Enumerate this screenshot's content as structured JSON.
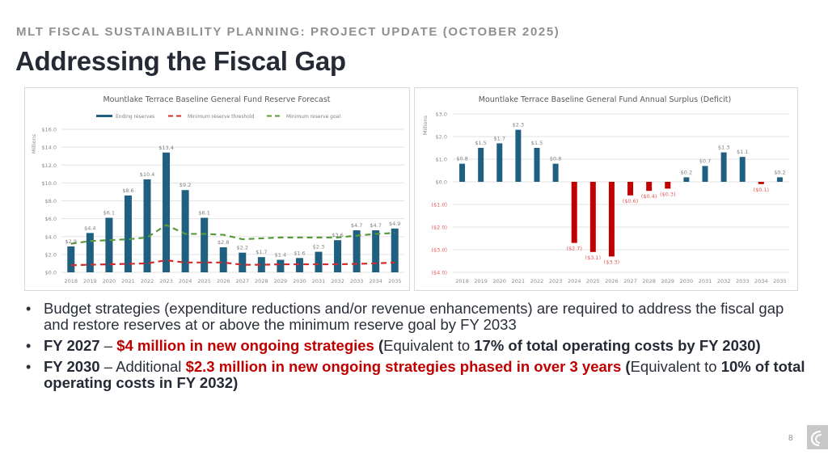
{
  "header": {
    "kicker": "MLT FISCAL SUSTAINABILITY PLANNING: PROJECT UPDATE (OCTOBER 2025)",
    "title": "Addressing the Fiscal Gap"
  },
  "colors": {
    "bar_positive": "#1f5f80",
    "bar_negative": "#c00000",
    "threshold_line": "#d12b2b",
    "goal_line": "#5a9a3a",
    "accent_red": "#c00000"
  },
  "chart_data": [
    {
      "type": "bar",
      "title": "Mountlake Terrace Baseline General Fund Reserve Forecast",
      "ylabel": "Millions",
      "xlabel": "",
      "ylim": [
        0,
        16
      ],
      "yticks": [
        "$0.0",
        "$2.0",
        "$4.0",
        "$6.0",
        "$8.0",
        "$10.0",
        "$12.0",
        "$14.0",
        "$16.0"
      ],
      "ytick_values": [
        0,
        2,
        4,
        6,
        8,
        10,
        12,
        14,
        16
      ],
      "grid": true,
      "legend_position": "top",
      "categories": [
        "2018",
        "2019",
        "2020",
        "2021",
        "2022",
        "2023",
        "2024",
        "2025",
        "2026",
        "2027",
        "2028",
        "2029",
        "2030",
        "2031",
        "2032",
        "2033",
        "2034",
        "2035"
      ],
      "series": [
        {
          "name": "Ending reserves",
          "kind": "bar",
          "values": [
            2.9,
            4.4,
            6.1,
            8.6,
            10.4,
            13.4,
            9.2,
            6.1,
            2.8,
            2.2,
            1.7,
            1.4,
            1.6,
            2.3,
            3.6,
            4.7,
            4.7,
            4.9
          ],
          "labels": [
            "$2.9",
            "$4.4",
            "$6.1",
            "$8.6",
            "$10.4",
            "$13.4",
            "$9.2",
            "$6.1",
            "$2.8",
            "$2.2",
            "$1.7",
            "$1.4",
            "$1.6",
            "$2.3",
            "$3.6",
            "$4.7",
            "$4.7",
            "$4.9"
          ]
        },
        {
          "name": "Minimum reserve threshold",
          "kind": "dashed-line",
          "values": [
            0.8,
            0.85,
            0.9,
            0.95,
            1.0,
            1.35,
            1.1,
            1.1,
            1.1,
            0.85,
            0.85,
            0.9,
            0.9,
            0.9,
            0.9,
            0.95,
            1.0,
            1.1
          ]
        },
        {
          "name": "Minimum reserve goal",
          "kind": "dashed-line",
          "values": [
            3.2,
            3.5,
            3.6,
            3.7,
            3.9,
            5.3,
            4.3,
            4.3,
            4.2,
            3.7,
            3.8,
            3.9,
            3.9,
            3.9,
            3.9,
            4.1,
            4.3,
            4.4
          ]
        }
      ]
    },
    {
      "type": "bar",
      "title": "Mountlake Terrace Baseline General Fund Annual Surplus (Deficit)",
      "ylabel": "Millions",
      "xlabel": "",
      "ylim": [
        -4,
        3
      ],
      "yticks": [
        "($4.0)",
        "($3.0)",
        "($2.0)",
        "($1.0)",
        "$0.0",
        "$1.0",
        "$2.0",
        "$3.0"
      ],
      "ytick_values": [
        -4,
        -3,
        -2,
        -1,
        0,
        1,
        2,
        3
      ],
      "grid": true,
      "legend_position": "none",
      "categories": [
        "2018",
        "2019",
        "2020",
        "2021",
        "2022",
        "2023",
        "2024",
        "2025",
        "2026",
        "2027",
        "2028",
        "2029",
        "2030",
        "2031",
        "2032",
        "2033",
        "2034",
        "2035"
      ],
      "series": [
        {
          "name": "Annual surplus (deficit)",
          "kind": "bar",
          "values": [
            0.8,
            1.5,
            1.7,
            2.3,
            1.5,
            0.8,
            -2.7,
            -3.1,
            -3.3,
            -0.6,
            -0.4,
            -0.3,
            0.2,
            0.7,
            1.3,
            1.1,
            -0.1,
            0.2
          ],
          "labels": [
            "$0.8",
            "$1.5",
            "$1.7",
            "$2.3",
            "$1.5",
            "$0.8",
            "($2.7)",
            "($3.1)",
            "($3.3)",
            "($0.6)",
            "($0.4)",
            "($0.3)",
            "$0.2",
            "$0.7",
            "$1.3",
            "$1.1",
            "($0.1)",
            "$0.2"
          ]
        }
      ]
    }
  ],
  "bullets": [
    {
      "parts": [
        {
          "text": "Budget strategies (expenditure reductions and/or revenue enhancements) are required to address the fiscal gap and restore reserves at or above the minimum reserve goal by FY 2033",
          "style": "normal"
        }
      ]
    },
    {
      "parts": [
        {
          "text": "FY 2027",
          "style": "bold"
        },
        {
          "text": " –  ",
          "style": "normal"
        },
        {
          "text": "$4 million in new ongoing strategies",
          "style": "red"
        },
        {
          "text": " (",
          "style": "bold"
        },
        {
          "text": "Equivalent to ",
          "style": "normal"
        },
        {
          "text": "17% of total operating costs by FY 2030)",
          "style": "bold"
        }
      ]
    },
    {
      "parts": [
        {
          "text": "FY 2030",
          "style": "bold"
        },
        {
          "text": " –  Additional ",
          "style": "normal"
        },
        {
          "text": "$2.3 million in new ongoing strategies phased in over 3 years",
          "style": "red"
        },
        {
          "text": " (",
          "style": "bold"
        },
        {
          "text": "Equivalent to ",
          "style": "normal"
        },
        {
          "text": "10% of total operating costs in FY 2032)",
          "style": "bold"
        }
      ]
    }
  ],
  "footer": {
    "page_number": "8",
    "logo_icon": "swirl-logo-icon"
  }
}
